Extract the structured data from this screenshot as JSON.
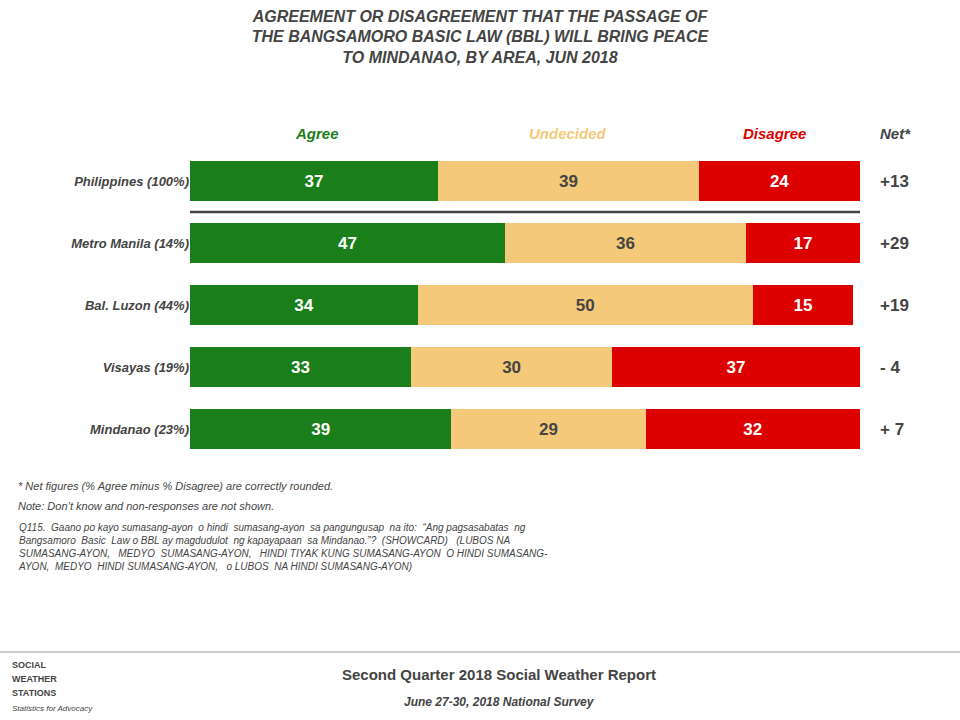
{
  "chart_data": {
    "type": "bar",
    "orientation": "horizontal",
    "stacked": true,
    "data_labels": true,
    "grid": false,
    "tick_labels": "y",
    "title": "AGREEMENT OR DISAGREEMENT THAT THE PASSAGE OF\nTHE BANGSAMORO BASIC LAW (BBL) WILL BRING PEACE\nTO MINDANAO, BY AREA, JUN 2018",
    "categories": [
      "Philippines (100%)",
      "Metro Manila (14%)",
      "Bal. Luzon (44%)",
      "Visayas (19%)",
      "Mindanao (23%)"
    ],
    "series": [
      {
        "name": "Agree",
        "color": "#1a7f1a",
        "values": [
          37,
          47,
          34,
          33,
          39
        ]
      },
      {
        "name": "Undecided",
        "color": "#f5c97a",
        "values": [
          39,
          36,
          50,
          30,
          29
        ]
      },
      {
        "name": "Disagree",
        "color": "#dd0000",
        "values": [
          24,
          17,
          15,
          37,
          32
        ]
      }
    ],
    "xlim": [
      0,
      100
    ],
    "net_header": "Net*",
    "net_labels": [
      "+13",
      "+29",
      "+19",
      "- 4",
      "+ 7"
    ],
    "notes": [
      "* Net figures (% Agree minus % Disagree) are correctly rounded.",
      "Note: Don’t know and non-responses are not shown.",
      "Q115.  Gaano po kayo sumasang-ayon  o hindi  sumasang-ayon  sa pangungusap  na ito:  “Ang pagsasabatas  ng\nBangsamoro  Basic  Law o BBL ay magdudulot  ng kapayapaan  sa Mindanao.”?  (SHOWCARD)   (LUBOS NA\nSUMASANG-AYON,   MEDYO  SUMASANG-AYON,   HINDI TIYAK KUNG SUMASANG-AYON  O HINDI SUMASANG-\nAYON,  MEDYO  HINDI SUMASANG-AYON,   o LUBOS  NA HINDI SUMASANG-AYON)"
    ],
    "footer": [
      "Second Quarter 2018 Social Weather Report",
      "June 27-30, 2018 National Survey"
    ],
    "logo": [
      "SOCIAL",
      "WEATHER",
      "STATIONS",
      "Statistics for Advocacy"
    ]
  }
}
